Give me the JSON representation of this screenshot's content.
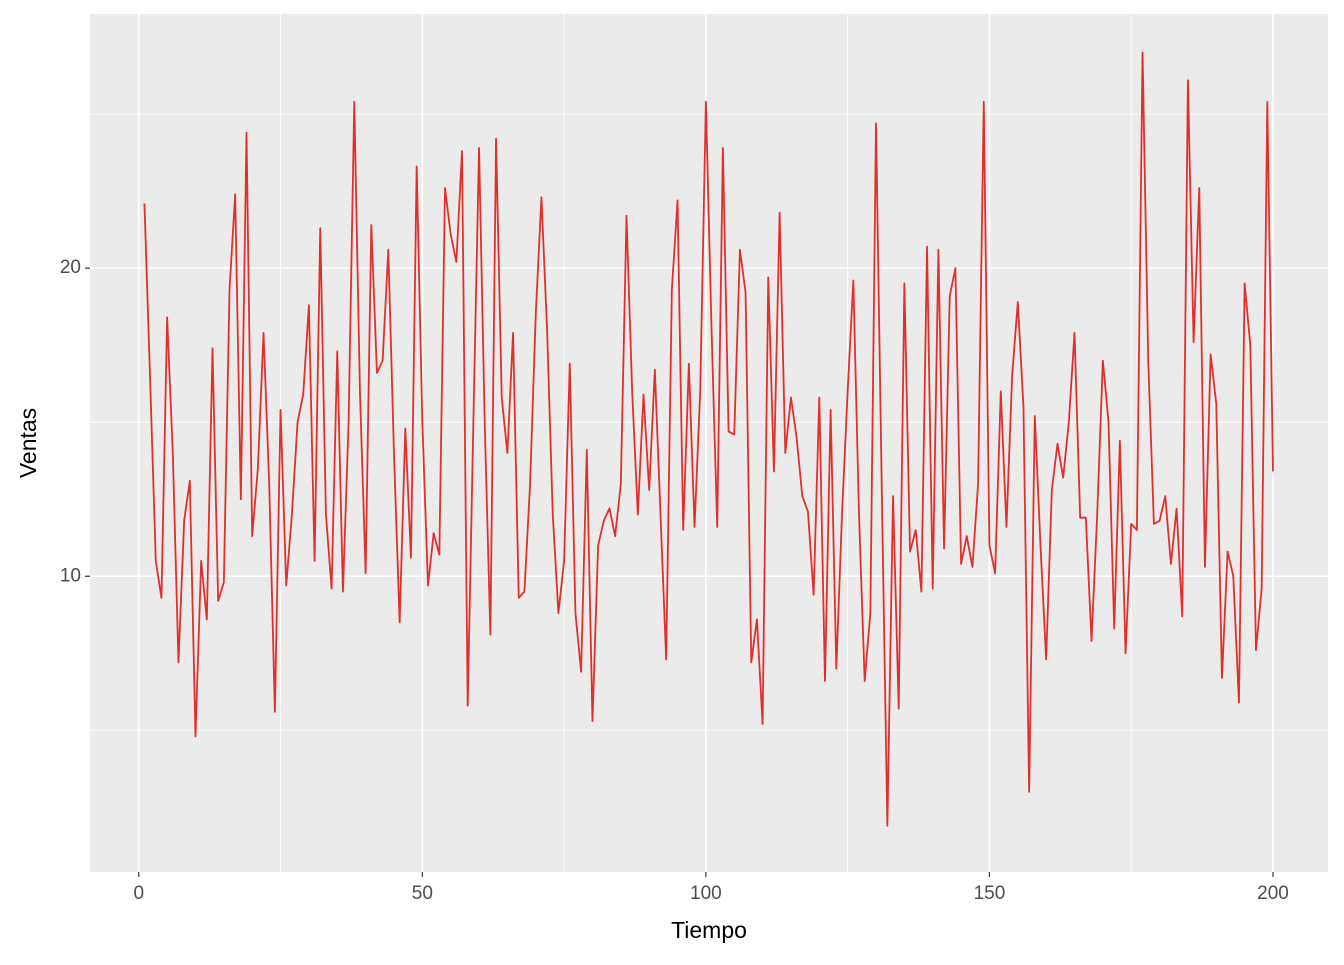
{
  "chart_data": {
    "type": "line",
    "x_label": "Tiempo",
    "y_label": "Ventas",
    "x": [
      1,
      2,
      3,
      4,
      5,
      6,
      7,
      8,
      9,
      10,
      11,
      12,
      13,
      14,
      15,
      16,
      17,
      18,
      19,
      20,
      21,
      22,
      23,
      24,
      25,
      26,
      27,
      28,
      29,
      30,
      31,
      32,
      33,
      34,
      35,
      36,
      37,
      38,
      39,
      40,
      41,
      42,
      43,
      44,
      45,
      46,
      47,
      48,
      49,
      50,
      51,
      52,
      53,
      54,
      55,
      56,
      57,
      58,
      59,
      60,
      61,
      62,
      63,
      64,
      65,
      66,
      67,
      68,
      69,
      70,
      71,
      72,
      73,
      74,
      75,
      76,
      77,
      78,
      79,
      80,
      81,
      82,
      83,
      84,
      85,
      86,
      87,
      88,
      89,
      90,
      91,
      92,
      93,
      94,
      95,
      96,
      97,
      98,
      99,
      100,
      101,
      102,
      103,
      104,
      105,
      106,
      107,
      108,
      109,
      110,
      111,
      112,
      113,
      114,
      115,
      116,
      117,
      118,
      119,
      120,
      121,
      122,
      123,
      124,
      125,
      126,
      127,
      128,
      129,
      130,
      131,
      132,
      133,
      134,
      135,
      136,
      137,
      138,
      139,
      140,
      141,
      142,
      143,
      144,
      145,
      146,
      147,
      148,
      149,
      150,
      151,
      152,
      153,
      154,
      155,
      156,
      157,
      158,
      159,
      160,
      161,
      162,
      163,
      164,
      165,
      166,
      167,
      168,
      169,
      170,
      171,
      172,
      173,
      174,
      175,
      176,
      177,
      178,
      179,
      180,
      181,
      182,
      183,
      184,
      185,
      186,
      187,
      188,
      189,
      190,
      191,
      192,
      193,
      194,
      195,
      196,
      197,
      198,
      199,
      200
    ],
    "series": [
      {
        "color": "#e0302c",
        "values": [
          22.1,
          16.4,
          10.5,
          9.3,
          18.4,
          14,
          7.2,
          11.8,
          13.1,
          4.8,
          10.5,
          8.6,
          17.4,
          9.2,
          9.8,
          19.3,
          22.4,
          12.5,
          24.4,
          11.3,
          13.5,
          17.9,
          13,
          5.6,
          15.4,
          9.7,
          12,
          15,
          15.9,
          18.8,
          10.5,
          21.3,
          12,
          9.6,
          17.3,
          9.5,
          15,
          25.4,
          16,
          10.1,
          21.4,
          16.6,
          17,
          20.6,
          14,
          8.5,
          14.8,
          10.6,
          23.3,
          15,
          9.7,
          11.4,
          10.7,
          22.6,
          21.1,
          20.2,
          23.8,
          5.8,
          15,
          23.9,
          15,
          8.1,
          24.2,
          15.8,
          14,
          17.9,
          9.3,
          9.5,
          13,
          18.5,
          22.3,
          18,
          12,
          8.8,
          10.5,
          16.9,
          8.8,
          6.9,
          14.1,
          5.3,
          11,
          11.8,
          12.2,
          11.3,
          13,
          21.7,
          16,
          12,
          15.9,
          12.8,
          16.7,
          12,
          7.3,
          19.3,
          22.2,
          11.5,
          16.9,
          11.6,
          16,
          25.4,
          18,
          11.6,
          23.9,
          14.7,
          14.6,
          20.6,
          19.2,
          7.2,
          8.6,
          5.2,
          19.7,
          13.4,
          21.8,
          14,
          15.8,
          14.5,
          12.6,
          12.1,
          9.4,
          15.8,
          6.6,
          15.4,
          7,
          12,
          16,
          19.6,
          12,
          6.6,
          8.8,
          24.7,
          13,
          1.9,
          12.6,
          5.7,
          19.5,
          10.8,
          11.5,
          9.5,
          20.7,
          9.6,
          20.6,
          10.9,
          19.1,
          20,
          10.4,
          11.3,
          10.3,
          13,
          25.4,
          11,
          10.1,
          16,
          11.6,
          16.5,
          18.9,
          15.5,
          3,
          15.2,
          11,
          7.3,
          12.8,
          14.3,
          13.2,
          15,
          17.9,
          11.9,
          11.9,
          7.9,
          12,
          17,
          15,
          8.3,
          14.4,
          7.5,
          11.7,
          11.5,
          27,
          17,
          11.7,
          11.8,
          12.6,
          10.4,
          12.2,
          8.7,
          26.1,
          17.6,
          22.6,
          10.3,
          17.2,
          15.6,
          6.7,
          10.8,
          10,
          5.9,
          19.5,
          17.5,
          7.6,
          9.6,
          25.4,
          13.4
        ]
      }
    ],
    "xlim": [
      -8.6,
      209.7
    ],
    "ylim": [
      0.4,
      28.25
    ],
    "xticks": [
      0,
      50,
      100,
      150,
      200
    ],
    "yticks": [
      10,
      20
    ],
    "minor_xticks": [
      25,
      75,
      125,
      175
    ],
    "minor_yticks": [
      5,
      15,
      25
    ],
    "grid": true
  }
}
